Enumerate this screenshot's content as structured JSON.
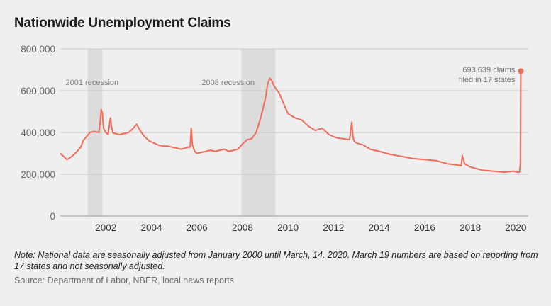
{
  "chart_data": {
    "type": "line",
    "title": "Nationwide Unemployment Claims",
    "y_ticks": [
      0,
      200000,
      400000,
      600000,
      800000
    ],
    "y_tick_labels": [
      "0",
      "200,000",
      "400,000",
      "600,000",
      "800,000"
    ],
    "ylim": [
      0,
      800000
    ],
    "x_ticks": [
      2002,
      2004,
      2006,
      2008,
      2010,
      2012,
      2014,
      2016,
      2018,
      2020
    ],
    "x_tick_labels": [
      "2002",
      "2004",
      "2006",
      "2008",
      "2010",
      "2012",
      "2014",
      "2016",
      "2018",
      "2020"
    ],
    "xlim": [
      2000.0,
      2020.55
    ],
    "series_color": "#f26c5a",
    "recession_color": "#dcdcdc",
    "recessions": [
      {
        "label": "2001 recession",
        "start": 2001.2,
        "end": 2001.85
      },
      {
        "label": "2008 recession",
        "start": 2007.95,
        "end": 2009.45
      }
    ],
    "series": [
      {
        "name": "Unemployment claims",
        "x": [
          2000.0,
          2000.15,
          2000.3,
          2000.5,
          2000.7,
          2000.9,
          2001.0,
          2001.15,
          2001.3,
          2001.5,
          2001.7,
          2001.75,
          2001.8,
          2001.85,
          2001.9,
          2002.0,
          2002.1,
          2002.2,
          2002.25,
          2002.3,
          2002.4,
          2002.6,
          2002.8,
          2003.0,
          2003.2,
          2003.35,
          2003.5,
          2003.7,
          2003.9,
          2004.1,
          2004.3,
          2004.5,
          2004.7,
          2004.9,
          2005.1,
          2005.3,
          2005.5,
          2005.6,
          2005.7,
          2005.75,
          2005.8,
          2005.9,
          2006.0,
          2006.2,
          2006.4,
          2006.6,
          2006.8,
          2007.0,
          2007.2,
          2007.4,
          2007.6,
          2007.8,
          2008.0,
          2008.2,
          2008.4,
          2008.6,
          2008.8,
          2009.0,
          2009.1,
          2009.2,
          2009.3,
          2009.4,
          2009.6,
          2009.8,
          2010.0,
          2010.3,
          2010.6,
          2010.9,
          2011.2,
          2011.5,
          2011.8,
          2012.1,
          2012.4,
          2012.7,
          2012.8,
          2012.85,
          2012.9,
          2013.0,
          2013.3,
          2013.6,
          2014.0,
          2014.5,
          2015.0,
          2015.5,
          2016.0,
          2016.5,
          2017.0,
          2017.4,
          2017.6,
          2017.65,
          2017.75,
          2018.0,
          2018.5,
          2019.0,
          2019.5,
          2019.9,
          2020.1,
          2020.16,
          2020.2,
          2020.22
        ],
        "values": [
          300000,
          285000,
          270000,
          285000,
          305000,
          330000,
          360000,
          380000,
          400000,
          405000,
          400000,
          450000,
          510000,
          490000,
          420000,
          400000,
          390000,
          470000,
          430000,
          400000,
          395000,
          390000,
          395000,
          400000,
          420000,
          440000,
          410000,
          380000,
          360000,
          350000,
          340000,
          335000,
          335000,
          330000,
          325000,
          320000,
          325000,
          330000,
          330000,
          420000,
          340000,
          310000,
          300000,
          305000,
          310000,
          315000,
          310000,
          315000,
          320000,
          310000,
          315000,
          320000,
          345000,
          365000,
          370000,
          400000,
          470000,
          560000,
          630000,
          660000,
          645000,
          620000,
          590000,
          540000,
          490000,
          470000,
          460000,
          430000,
          410000,
          420000,
          390000,
          375000,
          370000,
          365000,
          450000,
          380000,
          360000,
          350000,
          340000,
          320000,
          310000,
          295000,
          285000,
          275000,
          270000,
          265000,
          250000,
          245000,
          240000,
          290000,
          250000,
          235000,
          220000,
          215000,
          210000,
          215000,
          210000,
          210000,
          250000,
          693639
        ]
      }
    ],
    "annotation": {
      "line1": "693,639 claims",
      "line2": "filed in 17 states",
      "x": 2020.22,
      "y": 693639
    }
  },
  "note": "Note: National data are seasonally adjusted from January 2000 until March, 14. 2020. March 19 numbers are based on reporting from 17 states and not seasonally adjusted.",
  "source": "Source: Department of Labor, NBER, local news reports"
}
